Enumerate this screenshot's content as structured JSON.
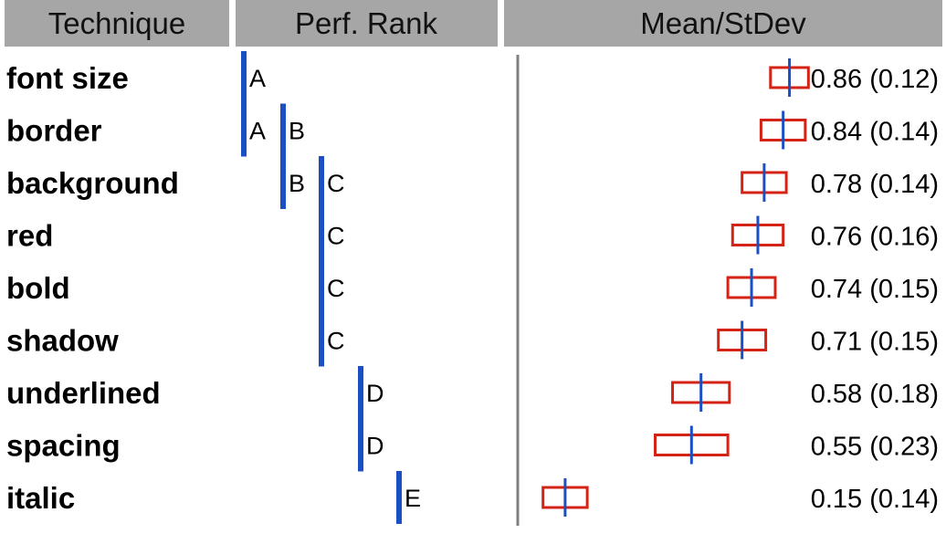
{
  "chart_data": {
    "type": "table",
    "headers": {
      "technique": "Technique",
      "rank": "Perf. Rank",
      "stats": "Mean/StDev"
    },
    "rows": [
      {
        "technique": "font size",
        "mean": 0.86,
        "stdev": 0.12,
        "label": "0.86 (0.12)",
        "ranks": [
          "A"
        ]
      },
      {
        "technique": "border",
        "mean": 0.84,
        "stdev": 0.14,
        "label": "0.84 (0.14)",
        "ranks": [
          "A",
          "B"
        ]
      },
      {
        "technique": "background",
        "mean": 0.78,
        "stdev": 0.14,
        "label": "0.78 (0.14)",
        "ranks": [
          "B",
          "C"
        ]
      },
      {
        "technique": "red",
        "mean": 0.76,
        "stdev": 0.16,
        "label": "0.76 (0.16)",
        "ranks": [
          "C"
        ]
      },
      {
        "technique": "bold",
        "mean": 0.74,
        "stdev": 0.15,
        "label": "0.74 (0.15)",
        "ranks": [
          "C"
        ]
      },
      {
        "technique": "shadow",
        "mean": 0.71,
        "stdev": 0.15,
        "label": "0.71 (0.15)",
        "ranks": [
          "C"
        ]
      },
      {
        "technique": "underlined",
        "mean": 0.58,
        "stdev": 0.18,
        "label": "0.58 (0.18)",
        "ranks": [
          "D"
        ]
      },
      {
        "technique": "spacing",
        "mean": 0.55,
        "stdev": 0.23,
        "label": "0.55 (0.23)",
        "ranks": [
          "D"
        ]
      },
      {
        "technique": "italic",
        "mean": 0.15,
        "stdev": 0.14,
        "label": "0.15 (0.14)",
        "ranks": [
          "E"
        ]
      }
    ],
    "rank_groups": [
      {
        "letter": "A",
        "from": "font size",
        "to": "border"
      },
      {
        "letter": "B",
        "from": "border",
        "to": "background"
      },
      {
        "letter": "C",
        "from": "background",
        "to": "shadow"
      },
      {
        "letter": "D",
        "from": "underlined",
        "to": "spacing"
      },
      {
        "letter": "E",
        "from": "italic",
        "to": "italic"
      }
    ],
    "xlim": [
      0.0,
      1.0
    ],
    "colors": {
      "header_bg": "#a6a6a6",
      "rank_bar": "#1d4fc4",
      "stdev_box": "#d42314",
      "mean_line": "#1d4fc4",
      "divider": "#808080"
    }
  }
}
